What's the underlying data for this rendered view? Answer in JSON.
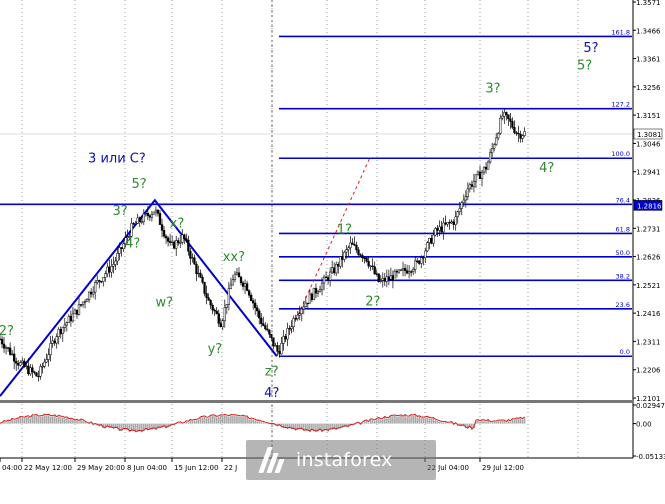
{
  "chart_data": {
    "type": "candlestick",
    "price_axis_ticks": [
      "1.3571",
      "1.3466",
      "1.3361",
      "1.3256",
      "1.3151",
      "1.3046",
      "1.2941",
      "1.2836",
      "1.2731",
      "1.2626",
      "1.2521",
      "1.2416",
      "1.2311",
      "1.2206",
      "1.2101"
    ],
    "ylim": [
      1.2101,
      1.3571
    ],
    "current_price": "1.3081",
    "highlight_price": "1.2816",
    "time_labels": [
      "04:00",
      "22 May 12:00",
      "29 May 20:00",
      "8 Jun 04:00",
      "15 Jun 12:00",
      "22 J",
      "22 Jul 04:00",
      "29 Jul 12:00"
    ],
    "fibonacci_levels": [
      {
        "label": "161.8",
        "price": 1.3443
      },
      {
        "label": "127.2",
        "price": 1.3175
      },
      {
        "label": "100.0",
        "price": 1.2991
      },
      {
        "label": "76.4",
        "price": 1.282
      },
      {
        "label": "61.8",
        "price": 1.2712
      },
      {
        "label": "50.0",
        "price": 1.2625
      },
      {
        "label": "38.2",
        "price": 1.2538
      },
      {
        "label": "23.6",
        "price": 1.2432
      },
      {
        "label": "0.0",
        "price": 1.2256
      }
    ],
    "wave_labels": [
      {
        "text": "2?",
        "color": "#2e8b2e",
        "price": 1.2335,
        "time": 0.01
      },
      {
        "text": "3 или С?",
        "color": "#1010b0",
        "price": 1.2975,
        "time": 0.185
      },
      {
        "text": "5?",
        "color": "#2e8b2e",
        "price": 1.288,
        "time": 0.22
      },
      {
        "text": "3?",
        "color": "#2e8b2e",
        "price": 1.278,
        "time": 0.19
      },
      {
        "text": "4?",
        "color": "#2e8b2e",
        "price": 1.266,
        "time": 0.21
      },
      {
        "text": "x?",
        "color": "#2e8b2e",
        "price": 1.2733,
        "time": 0.28
      },
      {
        "text": "w?",
        "color": "#2e8b2e",
        "price": 1.244,
        "time": 0.26
      },
      {
        "text": "xx?",
        "color": "#2e8b2e",
        "price": 1.261,
        "time": 0.37
      },
      {
        "text": "y?",
        "color": "#2e8b2e",
        "price": 1.2268,
        "time": 0.34
      },
      {
        "text": "z?",
        "color": "#2e8b2e",
        "price": 1.2184,
        "time": 0.43
      },
      {
        "text": "4?",
        "color": "#1010b0",
        "price": 1.2105,
        "time": 0.43
      },
      {
        "text": "1?",
        "color": "#2e8b2e",
        "price": 1.2712,
        "time": 0.545
      },
      {
        "text": "2?",
        "color": "#2e8b2e",
        "price": 1.2445,
        "time": 0.59
      },
      {
        "text": "3?",
        "color": "#2e8b2e",
        "price": 1.3235,
        "time": 0.78
      },
      {
        "text": "4?",
        "color": "#2e8b2e",
        "price": 1.294,
        "time": 0.865
      },
      {
        "text": "5?",
        "color": "#1010b0",
        "price": 1.3386,
        "time": 0.935
      },
      {
        "text": "5?",
        "color": "#2e8b2e",
        "price": 1.3321,
        "time": 0.925
      }
    ],
    "oscillator": {
      "ticks": [
        "0.02947",
        "0.00",
        "-0.05133"
      ],
      "ylim": [
        -0.05133,
        0.02947
      ]
    }
  },
  "watermark": {
    "text": "instaforex"
  }
}
